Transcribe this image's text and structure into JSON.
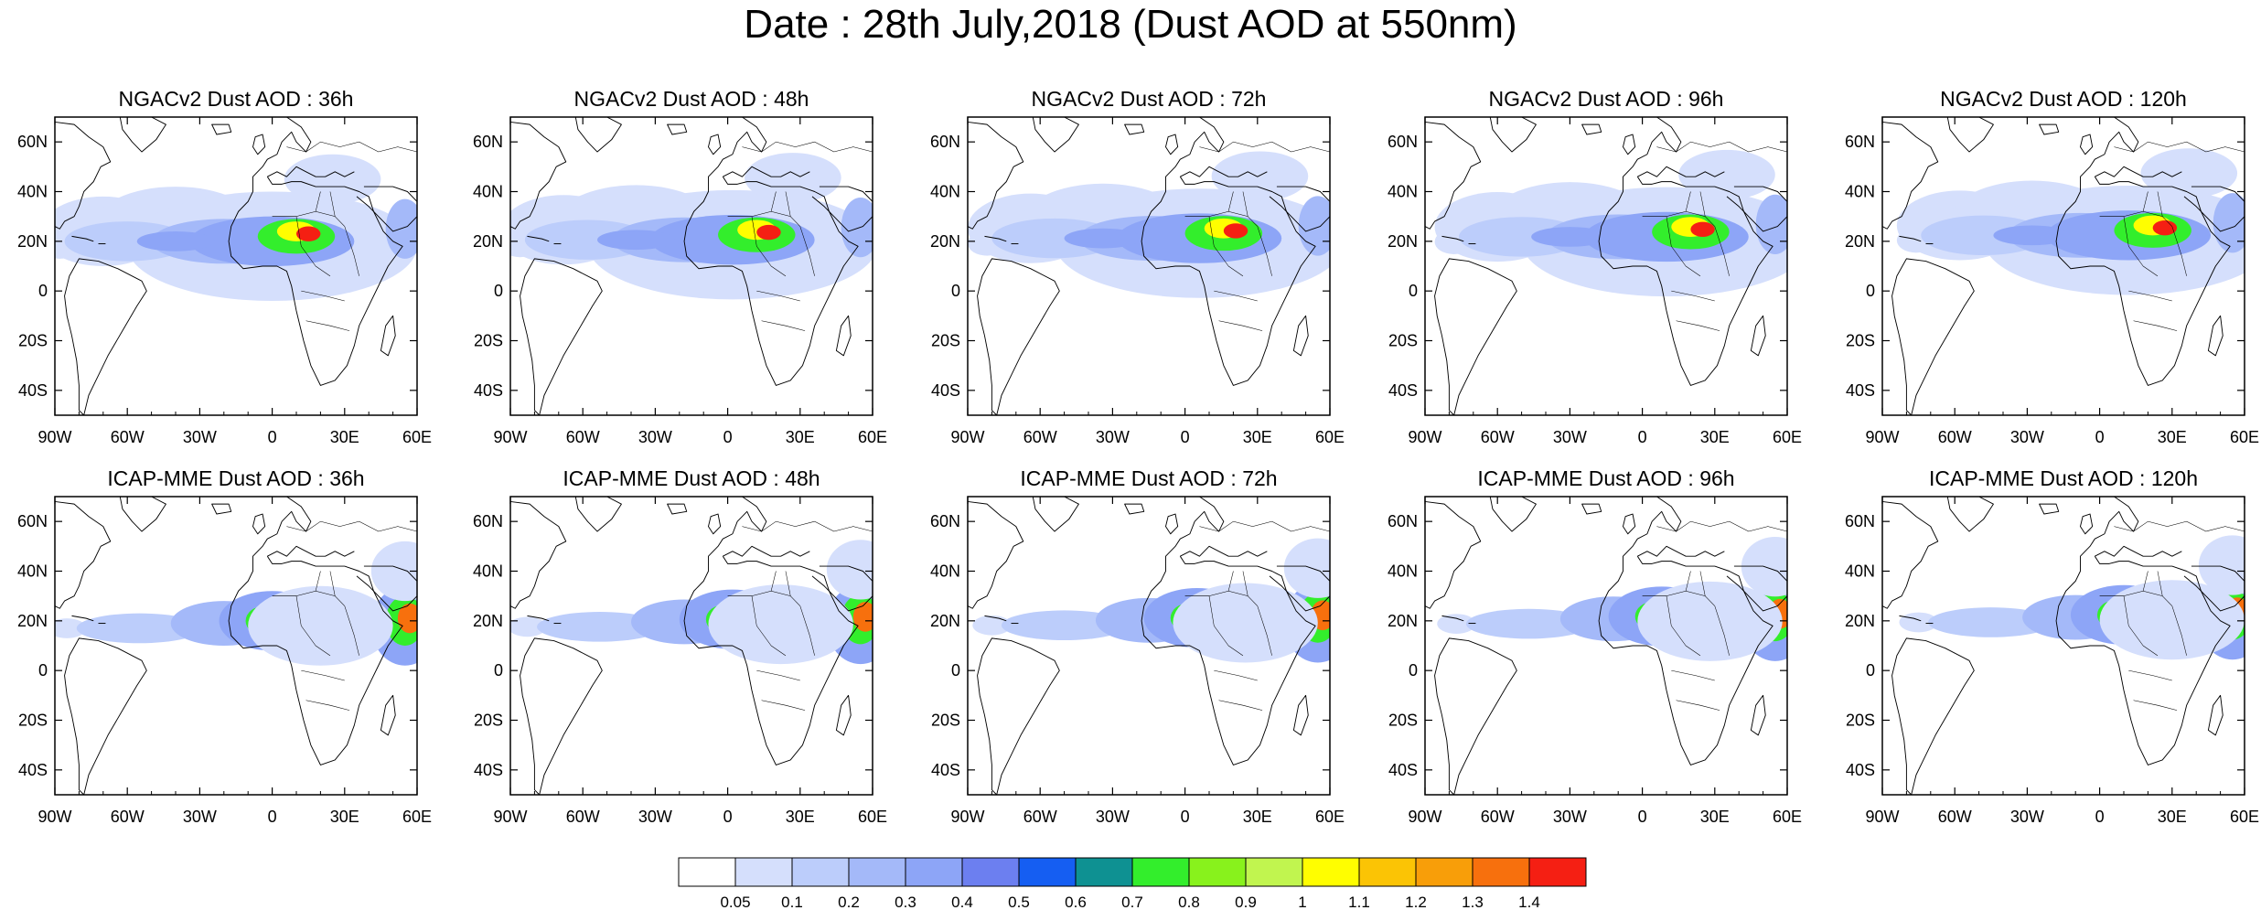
{
  "title": "Date : 28th July,2018 (Dust AOD at 550nm)",
  "panels": [
    {
      "title": "NGACv2 Dust AOD : 36h",
      "model": "NGACv2",
      "lead": "36h"
    },
    {
      "title": "NGACv2 Dust AOD : 48h",
      "model": "NGACv2",
      "lead": "48h"
    },
    {
      "title": "NGACv2 Dust AOD : 72h",
      "model": "NGACv2",
      "lead": "72h"
    },
    {
      "title": "NGACv2 Dust AOD : 96h",
      "model": "NGACv2",
      "lead": "96h"
    },
    {
      "title": "NGACv2 Dust AOD : 120h",
      "model": "NGACv2",
      "lead": "120h"
    },
    {
      "title": "ICAP-MME Dust AOD : 36h",
      "model": "ICAP-MME",
      "lead": "36h"
    },
    {
      "title": "ICAP-MME Dust AOD : 48h",
      "model": "ICAP-MME",
      "lead": "48h"
    },
    {
      "title": "ICAP-MME Dust AOD : 72h",
      "model": "ICAP-MME",
      "lead": "72h"
    },
    {
      "title": "ICAP-MME Dust AOD : 96h",
      "model": "ICAP-MME",
      "lead": "96h"
    },
    {
      "title": "ICAP-MME Dust AOD : 120h",
      "model": "ICAP-MME",
      "lead": "120h"
    }
  ],
  "lon_ticks": [
    "90W",
    "60W",
    "30W",
    "0",
    "30E",
    "60E"
  ],
  "lat_ticks": [
    "60N",
    "40N",
    "20N",
    "0",
    "20S",
    "40S"
  ],
  "lon_range": [
    -90,
    60
  ],
  "lat_range": [
    -50,
    70
  ],
  "colorbar": {
    "labels": [
      "0.05",
      "0.1",
      "0.2",
      "0.3",
      "0.4",
      "0.5",
      "0.6",
      "0.7",
      "0.8",
      "0.9",
      "1",
      "1.1",
      "1.2",
      "1.3",
      "1.4"
    ],
    "colors": [
      "#ffffff",
      "#d5dffc",
      "#bccdfb",
      "#a4b9f9",
      "#8da5f7",
      "#6c7ff0",
      "#155ef2",
      "#0e9192",
      "#33ee2c",
      "#88f21c",
      "#c1f54f",
      "#fffe00",
      "#fbc405",
      "#f89e09",
      "#f7700d",
      "#f51f13"
    ]
  },
  "colors": {
    "coastline": "#000000",
    "frame": "#000000"
  }
}
